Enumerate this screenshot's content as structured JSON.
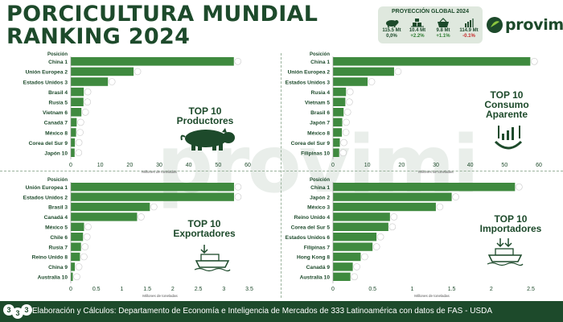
{
  "title": {
    "line1": "PORCICULTURA MUNDIAL",
    "line2": "RANKING 2024"
  },
  "projection": {
    "title": "PROYECCIÓN GLOBAL 2024",
    "items": [
      {
        "icon": "pig-icon",
        "value": "115.5 Mt",
        "change": "0,0%",
        "color": "#1d4a2b"
      },
      {
        "icon": "trade-boxes-icon",
        "value": "10.4 Mt",
        "change": "+2.2%",
        "color": "#2e7d32"
      },
      {
        "icon": "shopping-basket-icon",
        "value": "9.8 Mt",
        "change": "+1.1%",
        "color": "#2e7d32"
      },
      {
        "icon": "fork-chart-icon",
        "value": "114.9 Mt",
        "change": "-0.1%",
        "color": "#c62828"
      }
    ]
  },
  "brand": {
    "name": "provimi",
    "watermark": "provimi"
  },
  "footer": {
    "badge": [
      "3",
      "3",
      "3"
    ],
    "text": "Elaboración y Cálculos: Departamento de Economía e Inteligencia de Mercados de 333 Latinoamérica con datos de FAS - USDA"
  },
  "colors": {
    "bar": "#3f8a3f",
    "dark_green": "#1d4a2b"
  },
  "chart_data": [
    {
      "type": "bar",
      "orientation": "horizontal",
      "panel": "top-left",
      "title": "TOP 10 Productores",
      "position_header": "Posición",
      "xlabel": "Millones de toneladas",
      "xlim": [
        0,
        60
      ],
      "xticks": [
        "0",
        "10",
        "20",
        "30",
        "40",
        "50",
        "60"
      ],
      "categories": [
        "China 1",
        "Unión Europea 2",
        "Estados Unidos 3",
        "Brasil 4",
        "Rusia 5",
        "Vietnam 6",
        "Canadá 7",
        "México 8",
        "Corea del Sur 9",
        "Japón 10"
      ],
      "values": [
        55.3,
        21.3,
        12.6,
        4.4,
        4.3,
        3.6,
        2.0,
        1.8,
        1.4,
        1.3
      ],
      "icon": "pig-icon"
    },
    {
      "type": "bar",
      "orientation": "horizontal",
      "panel": "top-right",
      "title": "TOP 10 Consumo Aparente",
      "position_header": "Posición",
      "xlabel": "Millones de toneladas",
      "xlim": [
        0,
        60
      ],
      "xticks": [
        "0",
        "10",
        "20",
        "30",
        "40",
        "50",
        "60"
      ],
      "categories": [
        "China 1",
        "Unión Europea 2",
        "Estados Unidos 3",
        "Rusia 4",
        "Vietnam 5",
        "Brasil 6",
        "Japón 7",
        "México 8",
        "Corea del Sur 9",
        "Filipinas 10"
      ],
      "values": [
        57.5,
        17.8,
        10.1,
        3.8,
        3.6,
        3.1,
        2.7,
        2.6,
        2.0,
        1.8
      ],
      "icon": "consumption-icon"
    },
    {
      "type": "bar",
      "orientation": "horizontal",
      "panel": "bottom-left",
      "title": "TOP 10 Exportadores",
      "position_header": "Posición",
      "xlabel": "Millones de toneladas",
      "xlim": [
        0,
        3.5
      ],
      "xticks": [
        "0",
        "0.5",
        "1",
        "1.5",
        "2",
        "2.5",
        "3",
        "3.5"
      ],
      "categories": [
        "Unión Europea 1",
        "Estados Unidos 2",
        "Brasil 3",
        "Canadá 4",
        "México 5",
        "Chile 6",
        "Rusia 7",
        "Reino Unido 8",
        "China 9",
        "Australia 10"
      ],
      "values": [
        3.2,
        3.2,
        1.55,
        1.3,
        0.26,
        0.24,
        0.2,
        0.18,
        0.08,
        0.04
      ],
      "icon": "ship-export-icon"
    },
    {
      "type": "bar",
      "orientation": "horizontal",
      "panel": "bottom-right",
      "title": "TOP 10 Importadores",
      "position_header": "Posición",
      "xlabel": "Millones de toneladas",
      "xlim": [
        0,
        2.5
      ],
      "xticks": [
        "0",
        "0.5",
        "1",
        "1.5",
        "2",
        "2.5"
      ],
      "categories": [
        "China 1",
        "Japón 2",
        "México 3",
        "Reino Unido 4",
        "Corea del Sur 5",
        "Estados Unidos 6",
        "Filipinas 7",
        "Hong Kong 8",
        "Canadá 9",
        "Australia 10"
      ],
      "values": [
        2.3,
        1.5,
        1.3,
        0.72,
        0.7,
        0.55,
        0.5,
        0.35,
        0.25,
        0.22
      ],
      "icon": "ship-import-icon"
    }
  ]
}
